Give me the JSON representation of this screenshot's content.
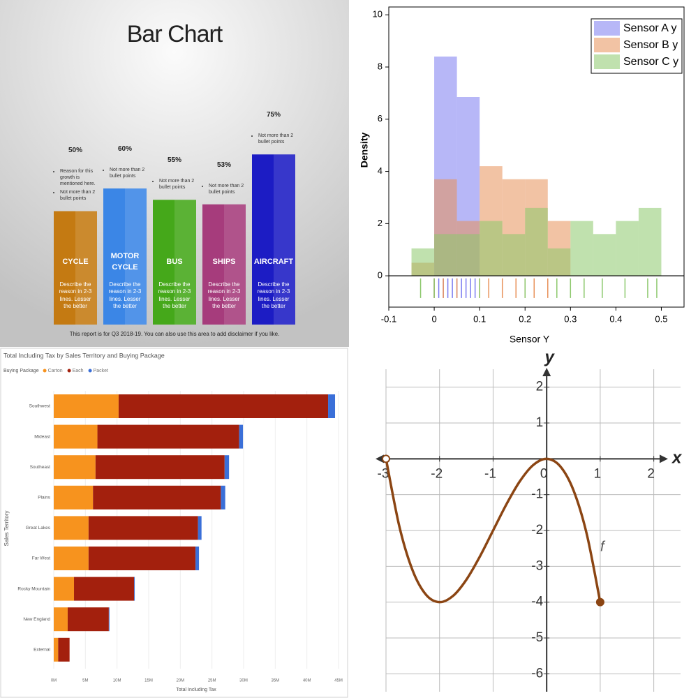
{
  "chart_data": [
    {
      "type": "bar",
      "title": "Bar Chart",
      "categories": [
        "CYCLE",
        "MOTOR CYCLE",
        "BUS",
        "SHIPS",
        "AIRCRAFT"
      ],
      "values": [
        50,
        60,
        55,
        53,
        75
      ],
      "value_labels": [
        "50%",
        "60%",
        "55%",
        "53%",
        "75%"
      ],
      "colors": [
        "#c47a12",
        "#3b86e6",
        "#45a81a",
        "#a63c7c",
        "#1c1cc4"
      ],
      "bullets": [
        [
          "Reason for this growth is mentioned here.",
          "Not more than 2 bullet points"
        ],
        [
          "Not more than 2 bullet points"
        ],
        [
          "Not more than 2 bullet points"
        ],
        [
          "Not more than 2 bullet points"
        ],
        [
          "Not more than 2 bullet points"
        ]
      ],
      "descriptions": [
        "Describe the reason in 2-3 lines. Lesser the better",
        "Describe the reason in 2-3 lines. Lesser the better",
        "Describe the reason in 2-3 lines. Lesser the better",
        "Describe the reason in 2-3 lines. Lesser the better",
        "Describe the reason in 2-3 lines. Lesser the better"
      ],
      "footnote": "This report is for Q3 2018-19. You can also use this area to add disclaimer if you like."
    },
    {
      "type": "histogram",
      "xlabel": "Sensor Y",
      "ylabel": "Density",
      "bins": [
        -0.05,
        0,
        0.05,
        0.1,
        0.15,
        0.2,
        0.25,
        0.3,
        0.35,
        0.4,
        0.45,
        0.5
      ],
      "series": [
        {
          "name": "Sensor A y",
          "color": "#7b7bf0",
          "values": [
            0,
            8.4,
            6.85,
            0,
            0,
            0,
            0,
            0,
            0,
            0,
            0
          ],
          "rug": [
            0.0,
            0.01,
            0.02,
            0.03,
            0.04,
            0.05,
            0.06,
            0.07,
            0.08,
            0.09
          ]
        },
        {
          "name": "Sensor B y",
          "color": "#e8925a",
          "values": [
            0.5,
            3.7,
            2.1,
            4.2,
            3.7,
            3.7,
            2.1,
            0,
            0,
            0,
            0
          ],
          "rug": [
            0.0,
            0.02,
            0.05,
            0.1,
            0.12,
            0.15,
            0.18,
            0.2,
            0.22,
            0.25
          ]
        },
        {
          "name": "Sensor C y",
          "color": "#8cc86c",
          "values": [
            1.05,
            1.6,
            1.6,
            2.1,
            1.6,
            2.6,
            1.05,
            2.1,
            1.6,
            2.1,
            2.6
          ],
          "rug": [
            -0.03,
            0.0,
            0.1,
            0.2,
            0.27,
            0.3,
            0.33,
            0.37,
            0.42,
            0.47,
            0.49
          ]
        }
      ],
      "xlim": [
        -0.1,
        0.55
      ],
      "xticks": [
        -0.1,
        0,
        0.1,
        0.2,
        0.3,
        0.4,
        0.5
      ],
      "ylim": [
        -1.2,
        10.3
      ],
      "yticks": [
        0,
        2,
        4,
        6,
        8,
        10
      ],
      "legend": "upper right"
    },
    {
      "type": "bar",
      "orientation": "horizontal",
      "stacked": true,
      "title": "Total Including Tax by Sales Territory and Buying Package",
      "legend_title": "Buying Package",
      "xlabel": "Total Including Tax",
      "ylabel": "Sales Territory",
      "categories": [
        "Southwest",
        "Mideast",
        "Southeast",
        "Plains",
        "Great Lakes",
        "Far West",
        "Rocky Mountain",
        "New England",
        "External"
      ],
      "series": [
        {
          "name": "Carton",
          "color": "#f7931e",
          "values": [
            10.25,
            6.9,
            6.6,
            6.2,
            5.5,
            5.5,
            3.2,
            2.2,
            0.7
          ]
        },
        {
          "name": "Each",
          "color": "#a3200d",
          "values": [
            33.1,
            22.4,
            20.4,
            20.2,
            17.3,
            16.9,
            9.5,
            6.5,
            1.8
          ]
        },
        {
          "name": "Packet",
          "color": "#3a6fd8",
          "values": [
            1.1,
            0.6,
            0.7,
            0.7,
            0.55,
            0.55,
            0.1,
            0.1,
            0
          ]
        }
      ],
      "xlim": [
        0,
        45
      ],
      "xticks": [
        {
          "value": 0,
          "label": "0M"
        },
        {
          "value": 5,
          "label": "5M"
        },
        {
          "value": 10,
          "label": "10M"
        },
        {
          "value": 15,
          "label": "15M"
        },
        {
          "value": 20,
          "label": "20M"
        },
        {
          "value": 25,
          "label": "25M"
        },
        {
          "value": 30,
          "label": "30M"
        },
        {
          "value": 35,
          "label": "35M"
        },
        {
          "value": 40,
          "label": "40M"
        },
        {
          "value": 45,
          "label": "45M"
        }
      ],
      "grid": true
    },
    {
      "type": "line",
      "xlabel": "x",
      "ylabel": "y",
      "x": [
        -3,
        -2.75,
        -2.5,
        -2.25,
        -2,
        -1.75,
        -1.5,
        -1.25,
        -1,
        -0.75,
        -0.5,
        -0.25,
        0,
        0.25,
        0.5,
        0.75,
        1
      ],
      "series": [
        {
          "name": "f",
          "color": "#8b4513",
          "values": [
            0,
            -1.891,
            -3.125,
            -3.797,
            -4,
            -3.828,
            -3.375,
            -2.734,
            -2,
            -1.266,
            -0.625,
            -0.172,
            0,
            -0.203,
            -0.875,
            -2.109,
            -4
          ]
        }
      ],
      "endpoints": [
        "open",
        "closed"
      ],
      "xlim": [
        -3,
        2.5
      ],
      "xticks": [
        -3,
        -2,
        -1,
        0,
        1,
        2
      ],
      "ylim": [
        -6.5,
        2.5
      ],
      "yticks": [
        -6,
        -5,
        -4,
        -3,
        -2,
        -1,
        1,
        2
      ],
      "grid": true
    }
  ]
}
